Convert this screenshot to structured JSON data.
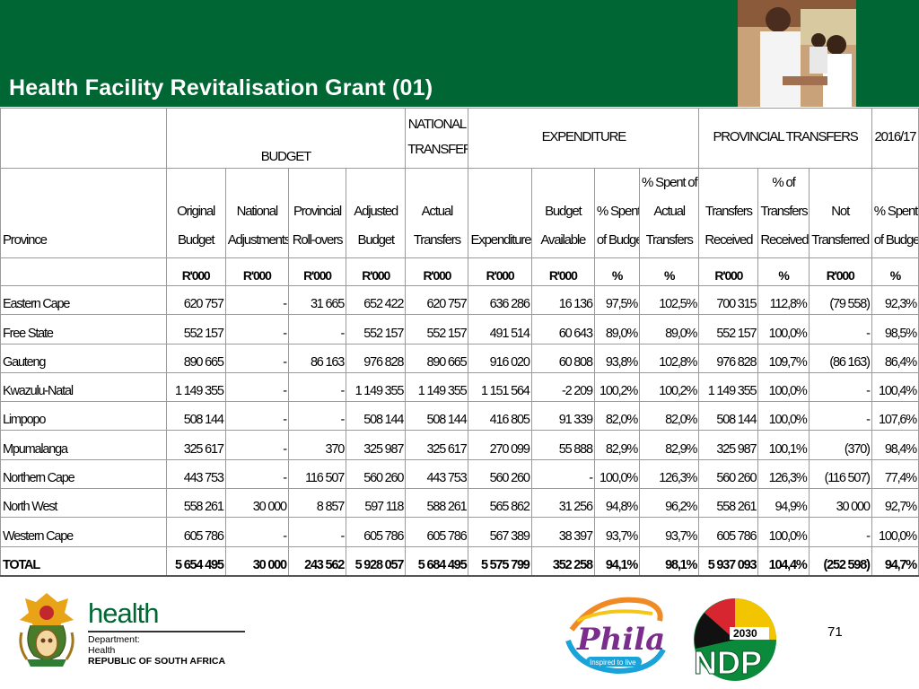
{
  "title": "Health Facility Revitalisation Grant (01)",
  "table": {
    "groups": {
      "budget": "BUDGET",
      "national_transfers_1": "NATIONAL",
      "national_transfers_2": "TRANSFERS",
      "expenditure": "EXPENDITURE",
      "provincial_transfers": "PROVINCIAL TRANSFERS",
      "year": "2016/17"
    },
    "columns": {
      "province": "Province",
      "original_budget": [
        "Original",
        "Budget"
      ],
      "national_adjustments": [
        "National",
        "Adjustments"
      ],
      "provincial_rollovers": [
        "Provincial",
        "Roll-overs"
      ],
      "adjusted_budget": [
        "Adjusted",
        "Budget"
      ],
      "actual_transfers": [
        "Actual",
        "Transfers"
      ],
      "expenditure": "Expenditure",
      "budget_available": [
        "Budget",
        "Available"
      ],
      "pct_spent_budget": [
        "% Spent",
        "of Budget"
      ],
      "pct_spent_actual": [
        "% Spent of",
        "Actual",
        "Transfers"
      ],
      "transfers_received": [
        "Transfers",
        "Received"
      ],
      "pct_transfers_received": [
        "% of",
        "Transfers",
        "Received"
      ],
      "not_transferred": [
        "Not",
        "Transferred"
      ],
      "pct_spent_budget_2": [
        "% Spent",
        "of Budget"
      ]
    },
    "units": [
      "R'000",
      "R'000",
      "R'000",
      "R'000",
      "R'000",
      "R'000",
      "R'000",
      "%",
      "%",
      "R'000",
      "%",
      "R'000",
      "%"
    ],
    "rows": [
      [
        "Eastern Cape",
        "620 757",
        "-",
        "31 665",
        "652 422",
        "620 757",
        "636 286",
        "16 136",
        "97,5%",
        "102,5%",
        "700 315",
        "112,8%",
        "(79 558)",
        "92,3%"
      ],
      [
        "Free State",
        "552 157",
        "-",
        "-",
        "552 157",
        "552 157",
        "491 514",
        "60 643",
        "89,0%",
        "89,0%",
        "552 157",
        "100,0%",
        "-",
        "98,5%"
      ],
      [
        "Gauteng",
        "890 665",
        "-",
        "86 163",
        "976 828",
        "890 665",
        "916 020",
        "60 808",
        "93,8%",
        "102,8%",
        "976 828",
        "109,7%",
        "(86 163)",
        "86,4%"
      ],
      [
        "Kwazulu-Natal",
        "1 149 355",
        "-",
        "-",
        "1 149 355",
        "1 149 355",
        "1 151 564",
        "-2 209",
        "100,2%",
        "100,2%",
        "1 149 355",
        "100,0%",
        "-",
        "100,4%"
      ],
      [
        "Limpopo",
        "508 144",
        "-",
        "-",
        "508 144",
        "508 144",
        "416 805",
        "91 339",
        "82,0%",
        "82,0%",
        "508 144",
        "100,0%",
        "-",
        "107,6%"
      ],
      [
        "Mpumalanga",
        "325 617",
        "-",
        "370",
        "325 987",
        "325 617",
        "270 099",
        "55 888",
        "82,9%",
        "82,9%",
        "325 987",
        "100,1%",
        "(370)",
        "98,4%"
      ],
      [
        "Northern Cape",
        "443 753",
        "-",
        "116 507",
        "560 260",
        "443 753",
        "560 260",
        "-",
        "100,0%",
        "126,3%",
        "560 260",
        "126,3%",
        "(116 507)",
        "77,4%"
      ],
      [
        "North West",
        "558 261",
        "30 000",
        "8 857",
        "597 118",
        "588 261",
        "565 862",
        "31 256",
        "94,8%",
        "96,2%",
        "558 261",
        "94,9%",
        "30 000",
        "92,7%"
      ],
      [
        "Western Cape",
        "605 786",
        "-",
        "-",
        "605 786",
        "605 786",
        "567 389",
        "38 397",
        "93,7%",
        "93,7%",
        "605 786",
        "100,0%",
        "-",
        "100,0%"
      ]
    ],
    "total": [
      "TOTAL",
      "5 654 495",
      "30 000",
      "243 562",
      "5 928 057",
      "5 684 495",
      "5 575 799",
      "352 258",
      "94,1%",
      "98,1%",
      "5 937 093",
      "104,4%",
      "(252 598)",
      "94,7%"
    ]
  },
  "footer": {
    "health": "health",
    "dept_line1": "Department:",
    "dept_line2": "Health",
    "dept_line3": "REPUBLIC OF SOUTH AFRICA",
    "phila": "Phila",
    "phila_tagline": "Inspired to live",
    "ndp_year": "2030",
    "ndp": "NDP",
    "page_number": "71"
  },
  "colors": {
    "header_green": "#006633",
    "phila_purple": "#7b2d8e",
    "ndp_green": "#0a8a3a",
    "ndp_yellow": "#f2c500",
    "ndp_red": "#d7262f"
  }
}
